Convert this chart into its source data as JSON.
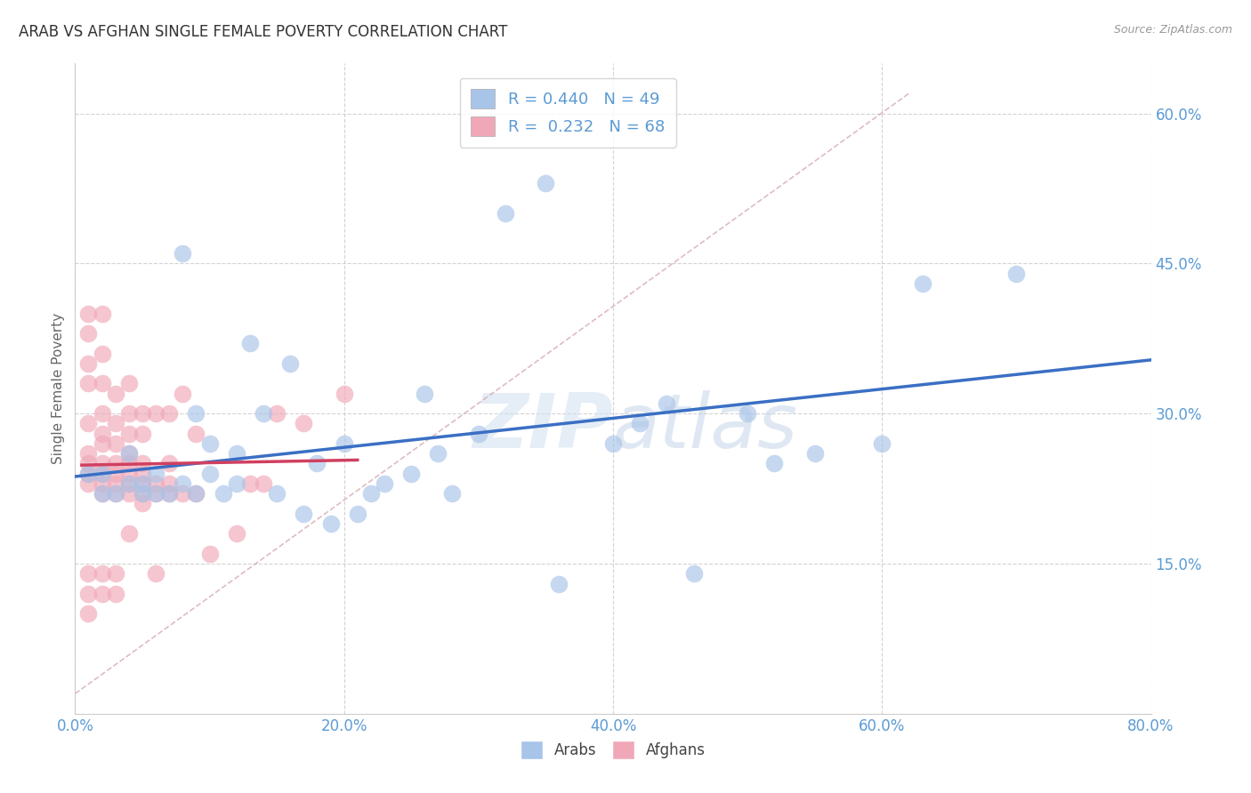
{
  "title": "ARAB VS AFGHAN SINGLE FEMALE POVERTY CORRELATION CHART",
  "source": "Source: ZipAtlas.com",
  "xlabel_range": [
    0.0,
    0.8
  ],
  "ylabel_range": [
    0.0,
    0.65
  ],
  "watermark": "ZIPatlas",
  "arab_color": "#a8c4e8",
  "afghan_color": "#f0a8b8",
  "arab_line_color": "#3a6fc4",
  "afghan_line_color": "#d04060",
  "arab_R": 0.44,
  "arab_N": 49,
  "afghan_R": 0.232,
  "afghan_N": 68,
  "arab_scatter_x": [
    0.01,
    0.02,
    0.02,
    0.03,
    0.04,
    0.04,
    0.05,
    0.05,
    0.06,
    0.06,
    0.07,
    0.08,
    0.08,
    0.09,
    0.09,
    0.1,
    0.1,
    0.11,
    0.12,
    0.12,
    0.13,
    0.14,
    0.15,
    0.16,
    0.17,
    0.18,
    0.19,
    0.2,
    0.21,
    0.22,
    0.23,
    0.25,
    0.26,
    0.27,
    0.28,
    0.3,
    0.32,
    0.35,
    0.36,
    0.4,
    0.42,
    0.44,
    0.46,
    0.5,
    0.52,
    0.55,
    0.6,
    0.63,
    0.7
  ],
  "arab_scatter_y": [
    0.24,
    0.22,
    0.24,
    0.22,
    0.23,
    0.26,
    0.22,
    0.23,
    0.22,
    0.24,
    0.22,
    0.23,
    0.46,
    0.22,
    0.3,
    0.24,
    0.27,
    0.22,
    0.23,
    0.26,
    0.37,
    0.3,
    0.22,
    0.35,
    0.2,
    0.25,
    0.19,
    0.27,
    0.2,
    0.22,
    0.23,
    0.24,
    0.32,
    0.26,
    0.22,
    0.28,
    0.5,
    0.53,
    0.13,
    0.27,
    0.29,
    0.31,
    0.14,
    0.3,
    0.25,
    0.26,
    0.27,
    0.43,
    0.44
  ],
  "afghan_scatter_x": [
    0.01,
    0.01,
    0.01,
    0.01,
    0.01,
    0.01,
    0.01,
    0.01,
    0.01,
    0.01,
    0.01,
    0.01,
    0.02,
    0.02,
    0.02,
    0.02,
    0.02,
    0.02,
    0.02,
    0.02,
    0.02,
    0.02,
    0.02,
    0.02,
    0.03,
    0.03,
    0.03,
    0.03,
    0.03,
    0.03,
    0.03,
    0.03,
    0.03,
    0.04,
    0.04,
    0.04,
    0.04,
    0.04,
    0.04,
    0.04,
    0.04,
    0.04,
    0.05,
    0.05,
    0.05,
    0.05,
    0.05,
    0.05,
    0.05,
    0.06,
    0.06,
    0.06,
    0.06,
    0.07,
    0.07,
    0.07,
    0.07,
    0.08,
    0.08,
    0.09,
    0.09,
    0.1,
    0.12,
    0.13,
    0.14,
    0.15,
    0.17,
    0.2
  ],
  "afghan_scatter_y": [
    0.1,
    0.12,
    0.14,
    0.23,
    0.24,
    0.25,
    0.26,
    0.29,
    0.33,
    0.35,
    0.38,
    0.4,
    0.12,
    0.14,
    0.22,
    0.23,
    0.24,
    0.25,
    0.27,
    0.28,
    0.3,
    0.33,
    0.36,
    0.4,
    0.12,
    0.14,
    0.22,
    0.23,
    0.24,
    0.25,
    0.27,
    0.29,
    0.32,
    0.18,
    0.22,
    0.23,
    0.24,
    0.25,
    0.26,
    0.28,
    0.3,
    0.33,
    0.21,
    0.22,
    0.23,
    0.24,
    0.25,
    0.28,
    0.3,
    0.14,
    0.22,
    0.23,
    0.3,
    0.22,
    0.23,
    0.25,
    0.3,
    0.22,
    0.32,
    0.22,
    0.28,
    0.16,
    0.18,
    0.23,
    0.23,
    0.3,
    0.29,
    0.32
  ],
  "background_color": "#ffffff",
  "grid_color": "#c8c8c8",
  "title_fontsize": 12,
  "tick_label_color": "#5b9bd5",
  "axis_label_color": "#666666"
}
